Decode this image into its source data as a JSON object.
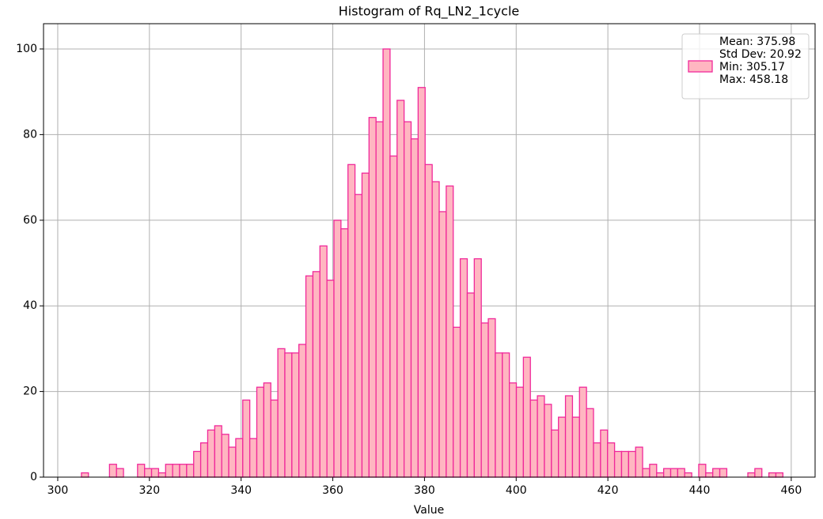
{
  "chart_data": {
    "type": "histogram",
    "title": "Histogram of Rq_LN2_1cycle",
    "xlabel": "Value",
    "bins": [
      305.17,
      306.7,
      308.23,
      309.76,
      311.29,
      312.82,
      314.35,
      315.88,
      317.41,
      318.94,
      320.47,
      322.0,
      323.53,
      325.06,
      326.59,
      328.12,
      329.65,
      331.18,
      332.71,
      334.24,
      335.77,
      337.3,
      338.83,
      340.36,
      341.89,
      343.42,
      344.95,
      346.48,
      348.01,
      349.54,
      351.07,
      352.6,
      354.13,
      355.66,
      357.19,
      358.72,
      360.25,
      361.78,
      363.31,
      364.84,
      366.37,
      367.9,
      369.43,
      370.96,
      372.49,
      374.02,
      375.55,
      377.08,
      378.61,
      380.14,
      381.68,
      383.21,
      384.74,
      386.27,
      387.8,
      389.33,
      390.86,
      392.39,
      393.92,
      395.45,
      396.98,
      398.51,
      400.04,
      401.57,
      403.1,
      404.63,
      406.16,
      407.69,
      409.22,
      410.75,
      412.28,
      413.81,
      415.34,
      416.87,
      418.4,
      419.93,
      421.46,
      422.99,
      424.52,
      426.05,
      427.58,
      429.11,
      430.64,
      432.17,
      433.7,
      435.23,
      436.76,
      438.29,
      439.82,
      441.35,
      442.88,
      444.41,
      445.94,
      447.47,
      449.0,
      450.53,
      452.06,
      453.59,
      455.12,
      456.65,
      458.18
    ],
    "counts": [
      1,
      0,
      0,
      0,
      3,
      2,
      0,
      0,
      3,
      2,
      2,
      1,
      3,
      3,
      3,
      3,
      6,
      8,
      11,
      12,
      10,
      7,
      9,
      18,
      9,
      21,
      22,
      18,
      30,
      29,
      29,
      31,
      47,
      48,
      54,
      46,
      60,
      58,
      73,
      66,
      71,
      84,
      83,
      100,
      75,
      88,
      83,
      79,
      91,
      73,
      69,
      62,
      68,
      35,
      51,
      43,
      51,
      36,
      37,
      29,
      29,
      22,
      21,
      28,
      18,
      19,
      17,
      11,
      14,
      19,
      14,
      21,
      16,
      8,
      11,
      8,
      6,
      6,
      6,
      7,
      2,
      3,
      1,
      2,
      2,
      2,
      1,
      0,
      3,
      1,
      2,
      2,
      0,
      0,
      0,
      1,
      2,
      0,
      1,
      1
    ],
    "color": "#ffb6c1",
    "edgecolor": "#f0289a",
    "legend_lines": [
      "Mean: 375.98",
      "Std Dev: 20.92",
      "Min: 305.17",
      "Max: 458.18"
    ],
    "legend_position": "upper right",
    "xlim": [
      296.9,
      465.2
    ],
    "xticks": [
      300,
      320,
      340,
      360,
      380,
      400,
      420,
      440,
      460
    ],
    "ylim": [
      0,
      105.9
    ],
    "yticks": [
      0,
      20,
      40,
      60,
      80,
      100
    ],
    "grid": true
  }
}
